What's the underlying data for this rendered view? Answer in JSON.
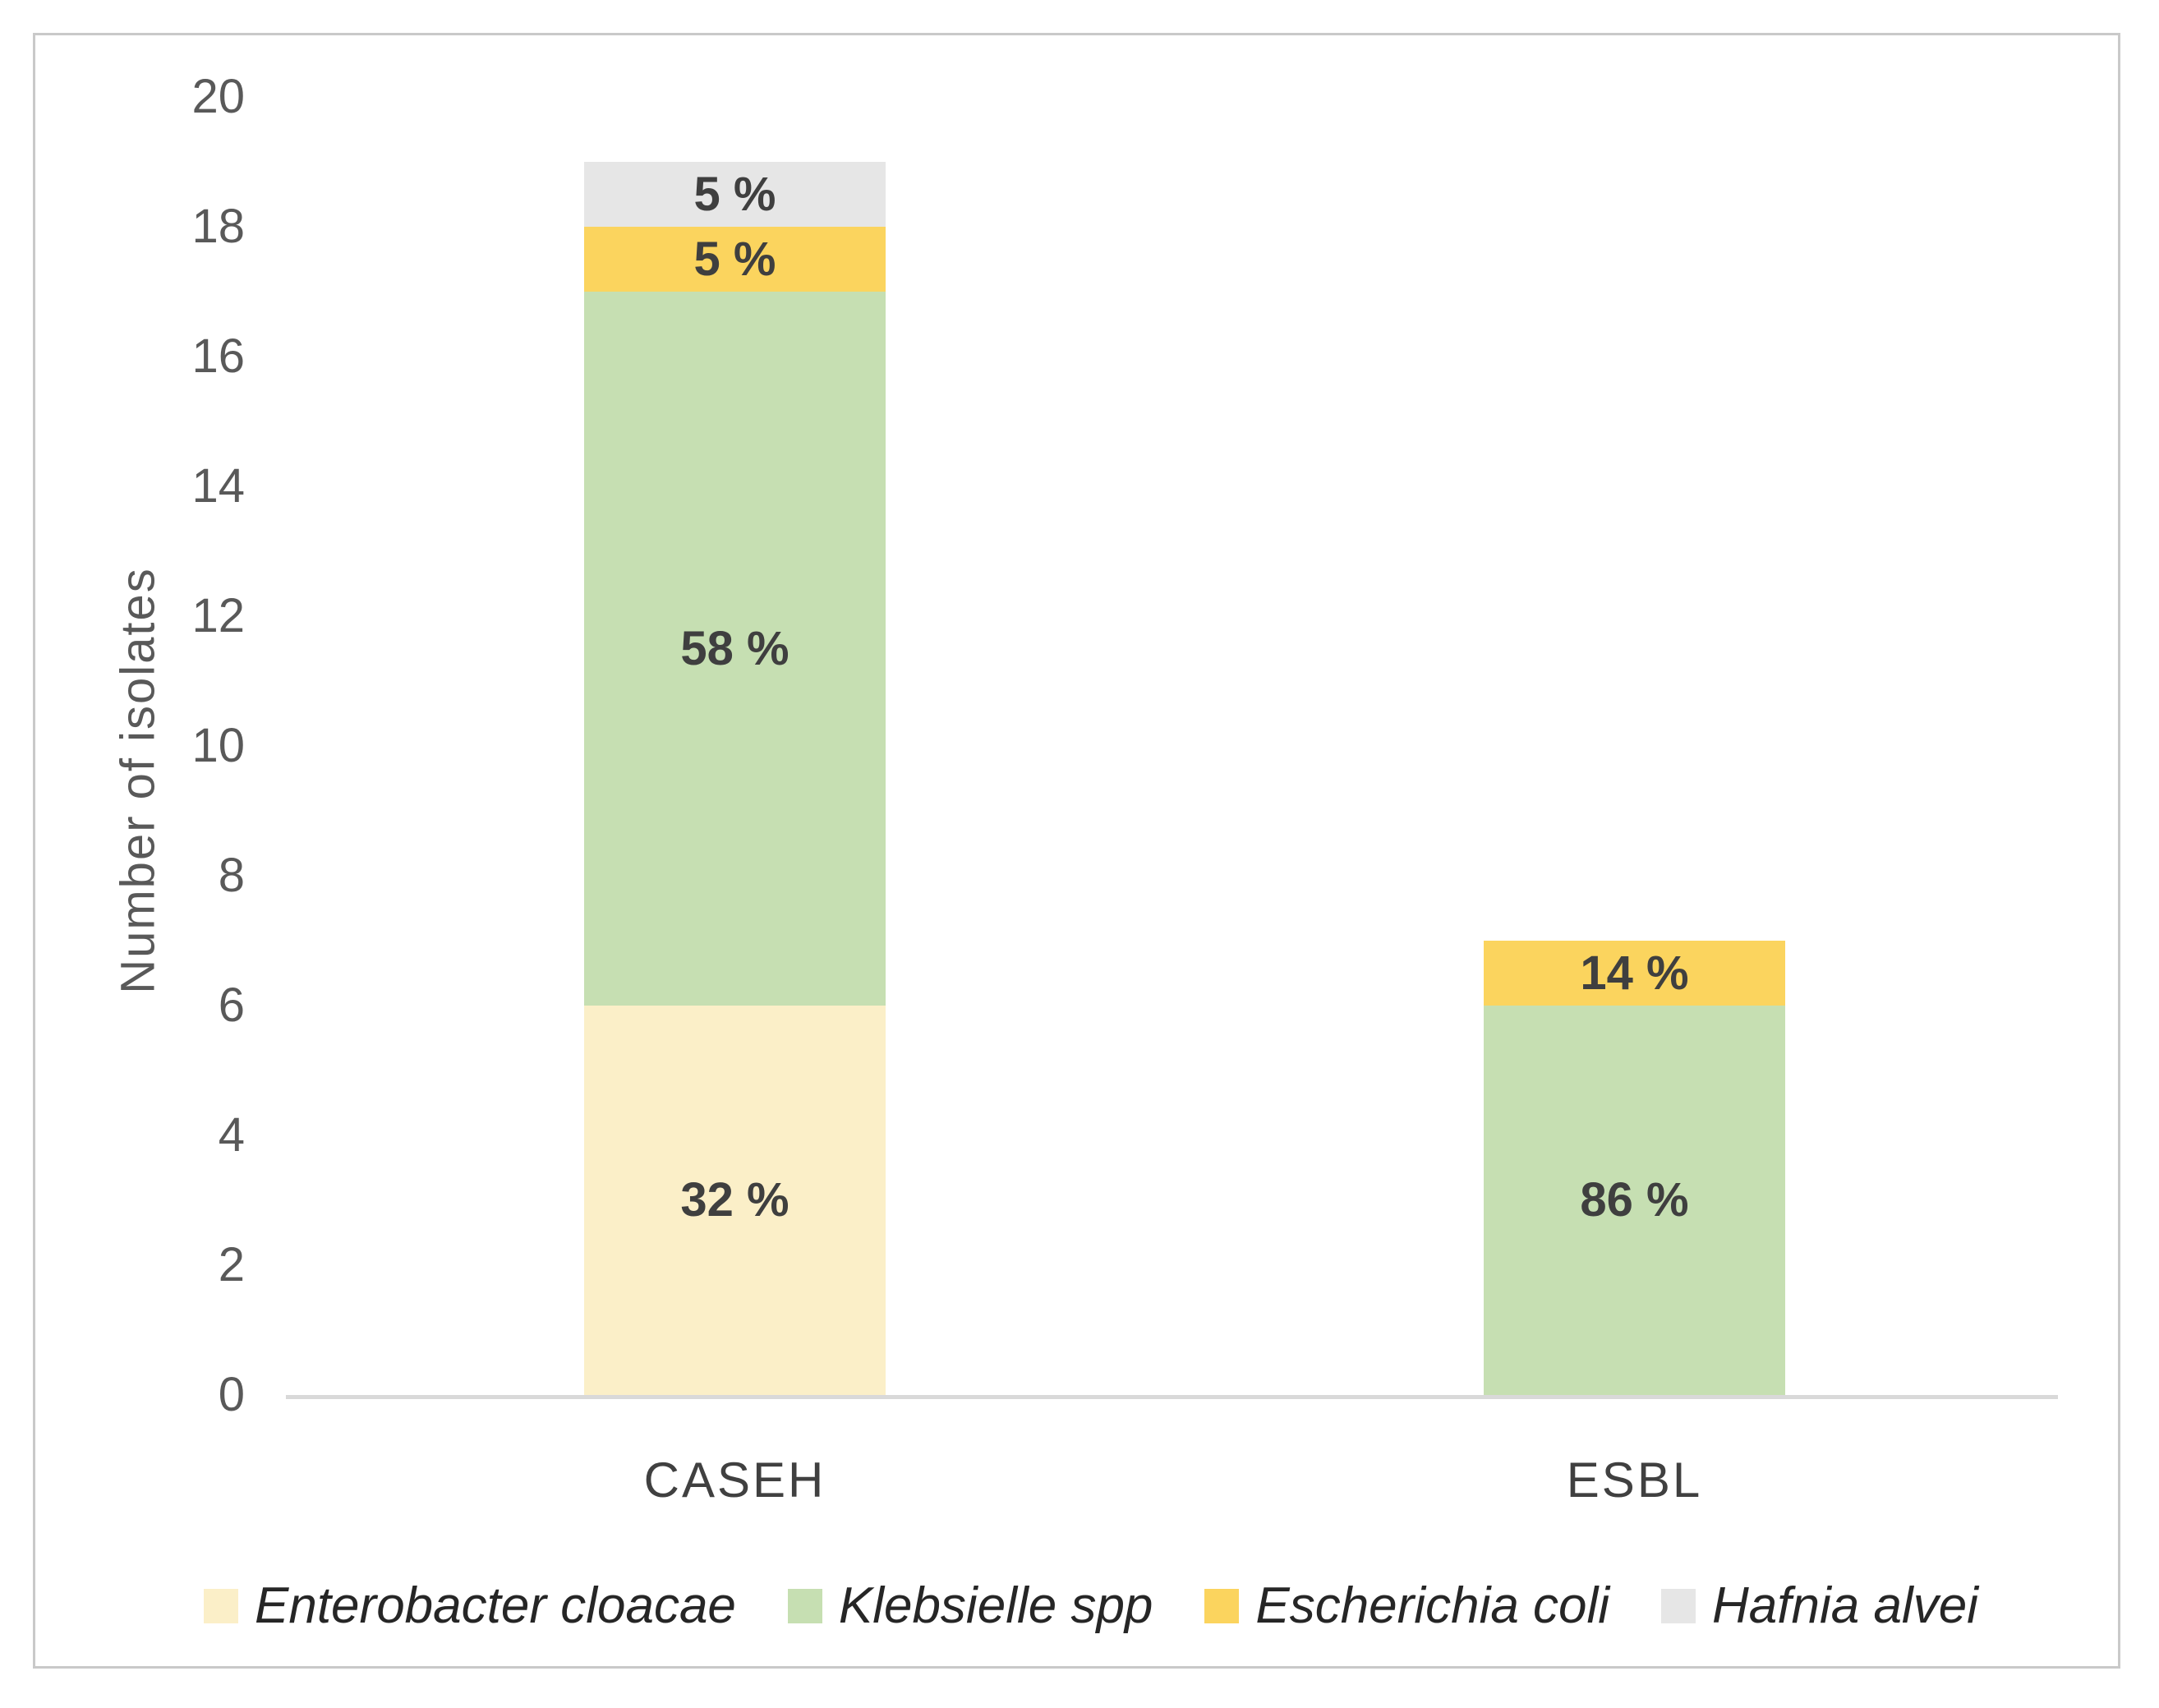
{
  "chart_data": {
    "type": "bar",
    "stacked": true,
    "title": "",
    "xlabel": "",
    "ylabel": "Number of isolates",
    "ylim": [
      0,
      20
    ],
    "yticks": [
      0,
      2,
      4,
      6,
      8,
      10,
      12,
      14,
      16,
      18,
      20
    ],
    "grid": false,
    "legend_position": "bottom",
    "categories": [
      "CASEH",
      "ESBL"
    ],
    "series": [
      {
        "name": "Enterobacter cloacae",
        "color": "#FBEFC8",
        "values": [
          6,
          0
        ],
        "labels": [
          "32 %",
          ""
        ]
      },
      {
        "name": "Klebsielle spp",
        "color": "#C6DFB2",
        "values": [
          11,
          6
        ],
        "labels": [
          "58 %",
          "86 %"
        ]
      },
      {
        "name": "Escherichia coli",
        "color": "#FBD45E",
        "values": [
          1,
          1
        ],
        "labels": [
          "5 %",
          "14 %"
        ]
      },
      {
        "name": "Hafnia alvei",
        "color": "#E6E6E6",
        "values": [
          1,
          0
        ],
        "labels": [
          "5 %",
          ""
        ]
      }
    ],
    "totals": [
      19,
      7
    ],
    "axis_line_color": "#D9D9D9",
    "text_colors": {
      "ticks": "#595959",
      "segment_labels": "#3F3F3F",
      "legend": "#262626"
    }
  }
}
